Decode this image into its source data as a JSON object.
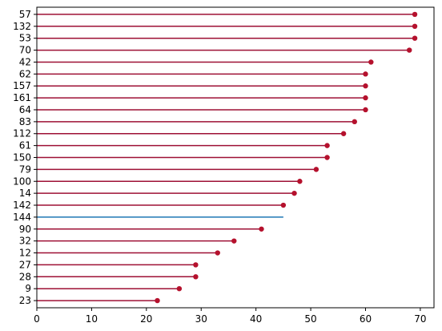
{
  "chart_data": {
    "type": "lollipop-horizontal",
    "title": "",
    "xlabel": "",
    "ylabel": "",
    "xlim": [
      0,
      72.5
    ],
    "xticks": [
      0,
      10,
      20,
      30,
      40,
      50,
      60,
      70
    ],
    "grid": false,
    "categories": [
      "57",
      "132",
      "53",
      "70",
      "42",
      "62",
      "157",
      "161",
      "64",
      "83",
      "112",
      "61",
      "150",
      "79",
      "100",
      "14",
      "142",
      "144",
      "90",
      "32",
      "12",
      "27",
      "28",
      "9",
      "23"
    ],
    "values": [
      69,
      69,
      69,
      68,
      61,
      60,
      60,
      60,
      60,
      58,
      56,
      53,
      53,
      51,
      48,
      47,
      45,
      45,
      41,
      36,
      33,
      29,
      29,
      26,
      22
    ],
    "highlight": {
      "category": "144",
      "color": "#1f77b4",
      "marker": false
    },
    "colors": {
      "stem": "#9e1035",
      "marker": "#b5112d",
      "axis": "#000000"
    }
  }
}
